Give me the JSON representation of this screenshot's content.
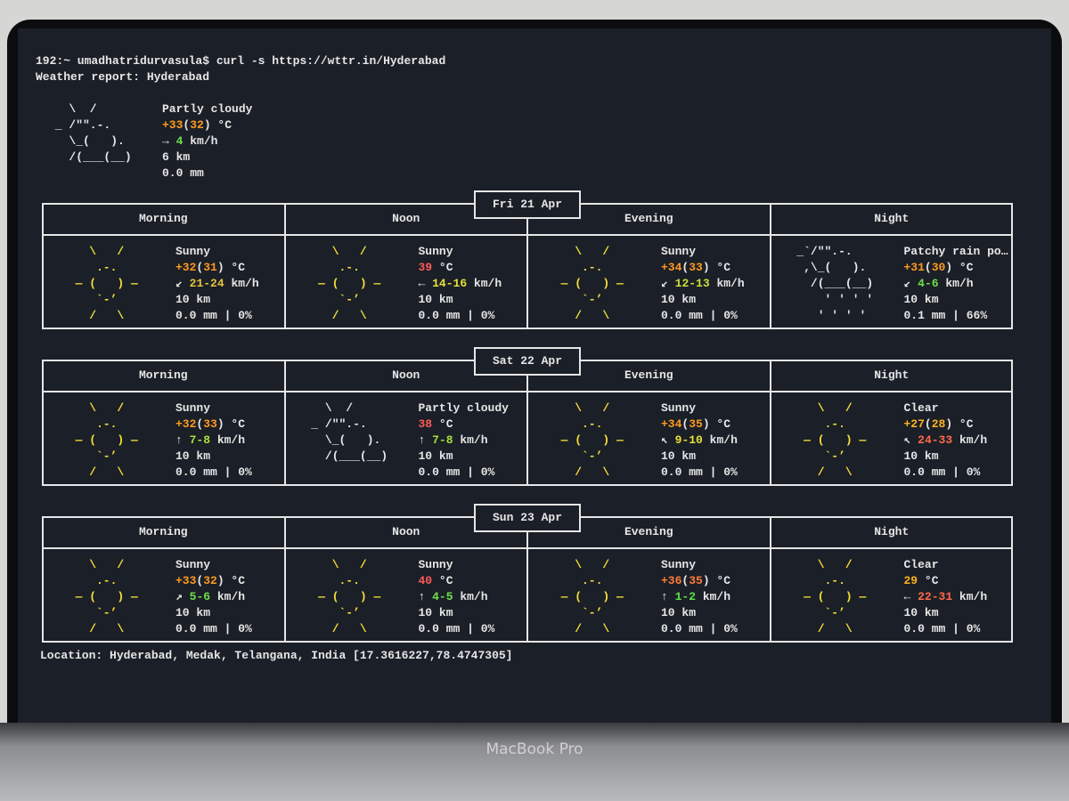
{
  "terminal": {
    "prompt": "192:~ umadhatridurvasula$ curl -s https://wttr.in/Hyderabad",
    "report": "Weather report: Hyderabad",
    "current": {
      "art_color": "#e8e8e8",
      "art": [
        "   \\  /      ",
        " _ /\"\".-.    ",
        "   \\_(   ).  ",
        "   /(___(__) "
      ],
      "lines": [
        "Partly cloudy",
        [
          {
            "t": "+33",
            "c": "#ff9a1f"
          },
          "(",
          {
            "t": "32",
            "c": "#ff9a1f"
          },
          ") °C"
        ],
        [
          "→ ",
          {
            "t": "4",
            "c": "#6ee04a"
          },
          " km/h"
        ],
        "6 km",
        "0.0 mm"
      ]
    },
    "days": [
      {
        "label": "Fri 21 Apr",
        "periods": [
          {
            "name": "Morning",
            "art_color": "#f5e03a",
            "art": [
              "    \\   /    ",
              "     .-.     ",
              "  ― (   ) ―  ",
              "     `-’     ",
              "    /   \\    "
            ],
            "lines": [
              "Sunny",
              [
                {
                  "t": "+32",
                  "c": "#ff9a1f"
                },
                "(",
                {
                  "t": "31",
                  "c": "#ff9a1f"
                },
                ") °C"
              ],
              [
                "↙ ",
                {
                  "t": "21-24",
                  "c": "#e8c53a"
                },
                " km/h"
              ],
              "10 km",
              "0.0 mm | 0%"
            ]
          },
          {
            "name": "Noon",
            "art_color": "#f5e03a",
            "art": [
              "    \\   /    ",
              "     .-.     ",
              "  ― (   ) ―  ",
              "     `-’     ",
              "    /   \\    "
            ],
            "lines": [
              "Sunny",
              [
                {
                  "t": "39",
                  "c": "#ff5a5a"
                },
                " °C"
              ],
              [
                "← ",
                {
                  "t": "14-16",
                  "c": "#e8e03a"
                },
                " km/h"
              ],
              "10 km",
              "0.0 mm | 0%"
            ]
          },
          {
            "name": "Evening",
            "art_color": "#f5e03a",
            "art": [
              "    \\   /    ",
              "     .-.     ",
              "  ― (   ) ―  ",
              "     `-’     ",
              "    /   \\    "
            ],
            "lines": [
              "Sunny",
              [
                {
                  "t": "+34",
                  "c": "#ff9a1f"
                },
                "(",
                {
                  "t": "33",
                  "c": "#ff9a1f"
                },
                ") °C"
              ],
              [
                "↙ ",
                {
                  "t": "12-13",
                  "c": "#c8e03a"
                },
                " km/h"
              ],
              "10 km",
              "0.0 mm | 0%"
            ]
          },
          {
            "name": "Night",
            "art_color": "#e8e8e8",
            "art": [
              " _`/\"\".-.    ",
              "  ,\\_(   ).  ",
              "   /(___(__) ",
              "     ' ' ' ' ",
              "    ' ' ' '  "
            ],
            "lines": [
              "Patchy rain po…",
              [
                {
                  "t": "+31",
                  "c": "#ff9a1f"
                },
                "(",
                {
                  "t": "30",
                  "c": "#ff9a1f"
                },
                ") °C"
              ],
              [
                "↙ ",
                {
                  "t": "4-6",
                  "c": "#6ee04a"
                },
                " km/h"
              ],
              "10 km",
              "0.1 mm | 66%"
            ]
          }
        ]
      },
      {
        "label": "Sat 22 Apr",
        "periods": [
          {
            "name": "Morning",
            "art_color": "#f5e03a",
            "art": [
              "    \\   /    ",
              "     .-.     ",
              "  ― (   ) ―  ",
              "     `-’     ",
              "    /   \\    "
            ],
            "lines": [
              "Sunny",
              [
                {
                  "t": "+32",
                  "c": "#ff9a1f"
                },
                "(",
                {
                  "t": "33",
                  "c": "#ff9a1f"
                },
                ") °C"
              ],
              [
                "↑ ",
                {
                  "t": "7-8",
                  "c": "#a8e03a"
                },
                " km/h"
              ],
              "10 km",
              "0.0 mm | 0%"
            ]
          },
          {
            "name": "Noon",
            "art_color": "#e8e8e8",
            "art": [
              "   \\  /      ",
              " _ /\"\".-.    ",
              "   \\_(   ).  ",
              "   /(___(__) "
            ],
            "lines": [
              "Partly cloudy",
              [
                {
                  "t": "38",
                  "c": "#ff5a5a"
                },
                " °C"
              ],
              [
                "↑ ",
                {
                  "t": "7-8",
                  "c": "#a8e03a"
                },
                " km/h"
              ],
              "10 km",
              "0.0 mm | 0%"
            ]
          },
          {
            "name": "Evening",
            "art_color": "#f5e03a",
            "art": [
              "    \\   /    ",
              "     .-.     ",
              "  ― (   ) ―  ",
              "     `-’     ",
              "    /   \\    "
            ],
            "lines": [
              "Sunny",
              [
                {
                  "t": "+34",
                  "c": "#ff9a1f"
                },
                "(",
                {
                  "t": "35",
                  "c": "#ff9a1f"
                },
                ") °C"
              ],
              [
                "↖ ",
                {
                  "t": "9-10",
                  "c": "#e8e03a"
                },
                " km/h"
              ],
              "10 km",
              "0.0 mm | 0%"
            ]
          },
          {
            "name": "Night",
            "art_color": "#f5e03a",
            "art": [
              "    \\   /    ",
              "     .-.     ",
              "  ― (   ) ―  ",
              "     `-’     ",
              "    /   \\    "
            ],
            "lines": [
              "Clear",
              [
                {
                  "t": "+27",
                  "c": "#ffb21f"
                },
                "(",
                {
                  "t": "28",
                  "c": "#ffb21f"
                },
                ") °C"
              ],
              [
                "↖ ",
                {
                  "t": "24-33",
                  "c": "#ff6a4a"
                },
                " km/h"
              ],
              "10 km",
              "0.0 mm | 0%"
            ]
          }
        ]
      },
      {
        "label": "Sun 23 Apr",
        "periods": [
          {
            "name": "Morning",
            "art_color": "#f5e03a",
            "art": [
              "    \\   /    ",
              "     .-.     ",
              "  ― (   ) ―  ",
              "     `-’     ",
              "    /   \\    "
            ],
            "lines": [
              "Sunny",
              [
                {
                  "t": "+33",
                  "c": "#ff9a1f"
                },
                "(",
                {
                  "t": "32",
                  "c": "#ff9a1f"
                },
                ") °C"
              ],
              [
                "↗ ",
                {
                  "t": "5-6",
                  "c": "#6ee04a"
                },
                " km/h"
              ],
              "10 km",
              "0.0 mm | 0%"
            ]
          },
          {
            "name": "Noon",
            "art_color": "#f5e03a",
            "art": [
              "    \\   /    ",
              "     .-.     ",
              "  ― (   ) ―  ",
              "     `-’     ",
              "    /   \\    "
            ],
            "lines": [
              "Sunny",
              [
                {
                  "t": "40",
                  "c": "#ff5a5a"
                },
                " °C"
              ],
              [
                "↑ ",
                {
                  "t": "4-5",
                  "c": "#6ee04a"
                },
                " km/h"
              ],
              "10 km",
              "0.0 mm | 0%"
            ]
          },
          {
            "name": "Evening",
            "art_color": "#f5e03a",
            "art": [
              "    \\   /    ",
              "     .-.     ",
              "  ― (   ) ―  ",
              "     `-’     ",
              "    /   \\    "
            ],
            "lines": [
              "Sunny",
              [
                {
                  "t": "+36",
                  "c": "#ff7a3a"
                },
                "(",
                {
                  "t": "35",
                  "c": "#ff7a3a"
                },
                ") °C"
              ],
              [
                "↑ ",
                {
                  "t": "1-2",
                  "c": "#5ee04a"
                },
                " km/h"
              ],
              "10 km",
              "0.0 mm | 0%"
            ]
          },
          {
            "name": "Night",
            "art_color": "#f5e03a",
            "art": [
              "    \\   /    ",
              "     .-.     ",
              "  ― (   ) ―  ",
              "     `-’     ",
              "    /   \\    "
            ],
            "lines": [
              "Clear",
              [
                {
                  "t": "29",
                  "c": "#ffb21f"
                },
                " °C"
              ],
              [
                "← ",
                {
                  "t": "22-31",
                  "c": "#ff6a4a"
                },
                " km/h"
              ],
              "10 km",
              "0.0 mm | 0%"
            ]
          }
        ]
      }
    ],
    "location": "Location: Hyderabad, Medak, Telangana, India [17.3616227,78.4747305]"
  },
  "device_label": "MacBook Pro"
}
